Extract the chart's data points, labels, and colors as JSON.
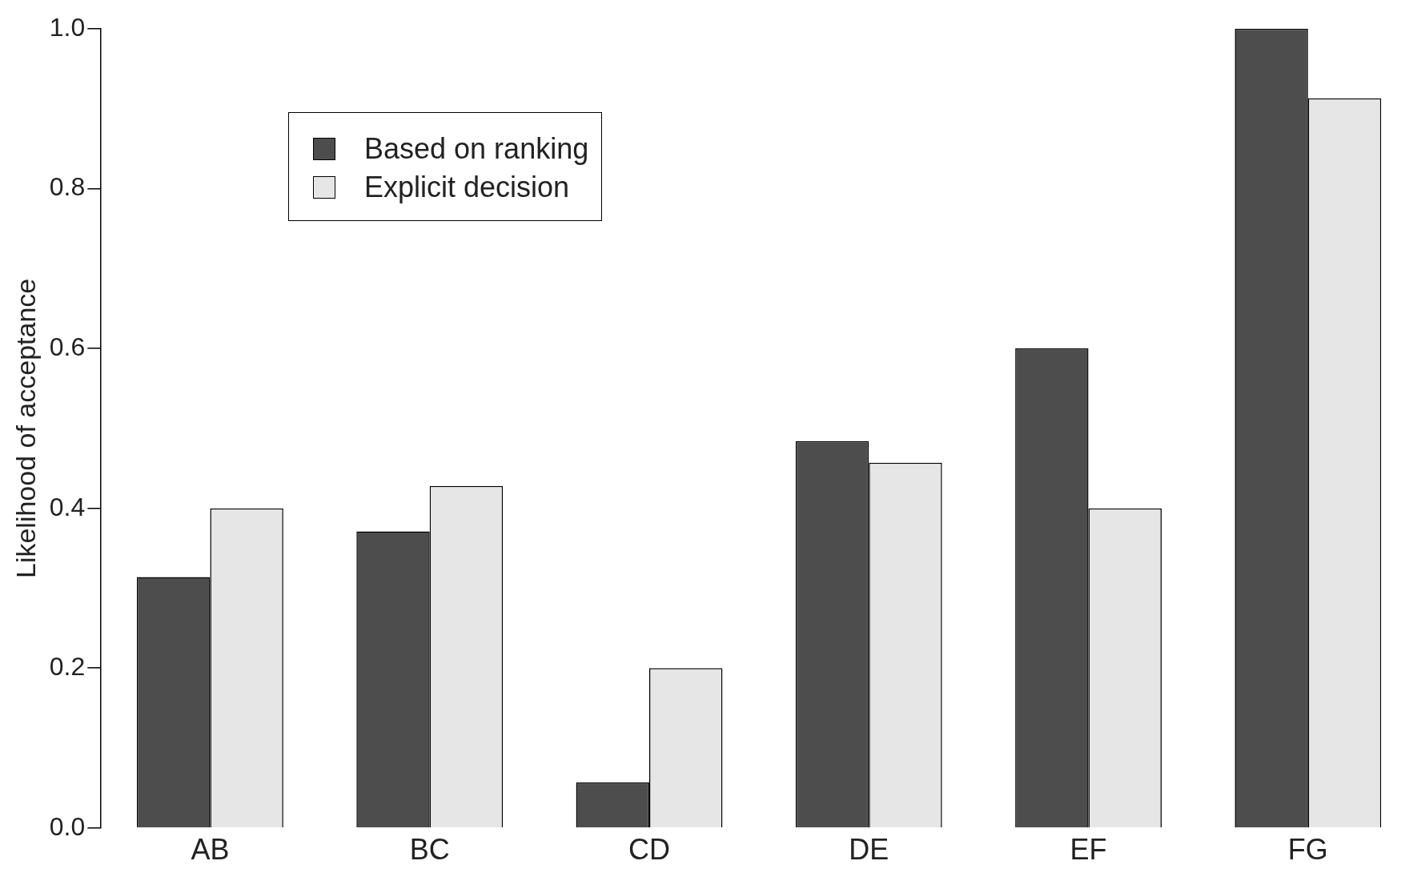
{
  "chart_data": {
    "type": "bar",
    "ylabel": "Likelihood of acceptance",
    "categories": [
      "AB",
      "BC",
      "CD",
      "DE",
      "EF",
      "FG"
    ],
    "series": [
      {
        "name": "Based on ranking",
        "color": "#4d4d4d",
        "values": [
          0.314,
          0.371,
          0.057,
          0.484,
          0.6,
          1.0
        ]
      },
      {
        "name": "Explicit decision",
        "color": "#e6e6e6",
        "values": [
          0.4,
          0.428,
          0.2,
          0.457,
          0.4,
          0.913
        ]
      }
    ],
    "ylim": [
      0,
      1
    ],
    "yticks": [
      {
        "value": 0,
        "label": "0.0"
      },
      {
        "value": 0.2,
        "label": "0.2"
      },
      {
        "value": 0.4,
        "label": "0.4"
      },
      {
        "value": 0.6,
        "label": "0.6"
      },
      {
        "value": 0.8,
        "label": "0.8"
      },
      {
        "value": 1,
        "label": "1.0"
      }
    ],
    "grid": false,
    "legend": "top left"
  }
}
